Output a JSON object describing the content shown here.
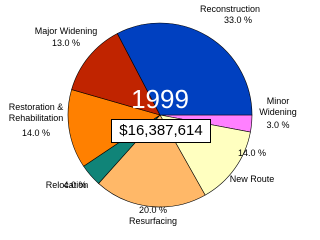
{
  "chart_data": {
    "type": "pie",
    "title": "1999",
    "subtitle": "$16,387,614",
    "categories": [
      "Minor Widening",
      "New Route",
      "Resurfacing",
      "Relocation",
      "Restoration & Rehabilitation",
      "Major Widening",
      "Reconstruction"
    ],
    "values": [
      3.0,
      14.0,
      20.0,
      4.0,
      14.0,
      13.0,
      33.0
    ],
    "value_labels": [
      "3.0 %",
      "14.0 %",
      "20.0 %",
      "4.0 %",
      "14.0 %",
      "13.0 %",
      "33.0 %"
    ],
    "colors": [
      "#ff80ff",
      "#ffffc0",
      "#ffb868",
      "#108478",
      "#ff8000",
      "#c02400",
      "#0040c0"
    ]
  }
}
